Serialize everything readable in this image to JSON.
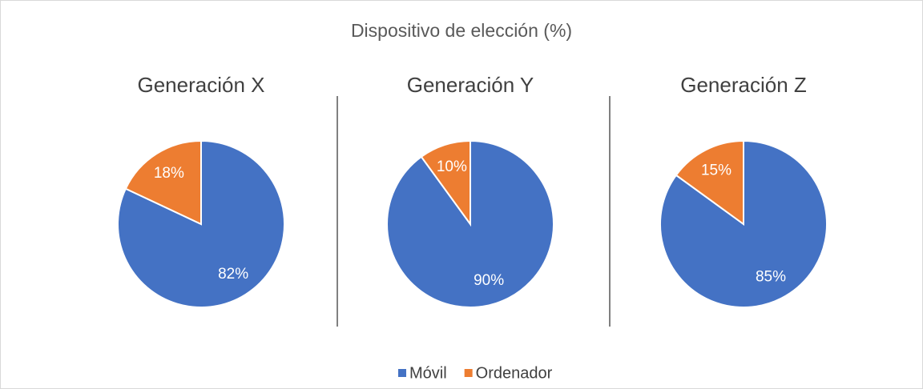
{
  "title": "Dispositivo de elección (%)",
  "chart_data": [
    {
      "type": "pie",
      "title": "Generación X",
      "categories": [
        "Móvil",
        "Ordenador"
      ],
      "values": [
        82,
        18
      ],
      "value_labels": [
        "82%",
        "18%"
      ],
      "colors": [
        "#4472c4",
        "#ed7d31"
      ]
    },
    {
      "type": "pie",
      "title": "Generación Y",
      "categories": [
        "Móvil",
        "Ordenador"
      ],
      "values": [
        90,
        10
      ],
      "value_labels": [
        "90%",
        "10%"
      ],
      "colors": [
        "#4472c4",
        "#ed7d31"
      ]
    },
    {
      "type": "pie",
      "title": "Generación Z",
      "categories": [
        "Móvil",
        "Ordenador"
      ],
      "values": [
        85,
        15
      ],
      "value_labels": [
        "85%",
        "15%"
      ],
      "colors": [
        "#4472c4",
        "#ed7d31"
      ]
    }
  ]
}
